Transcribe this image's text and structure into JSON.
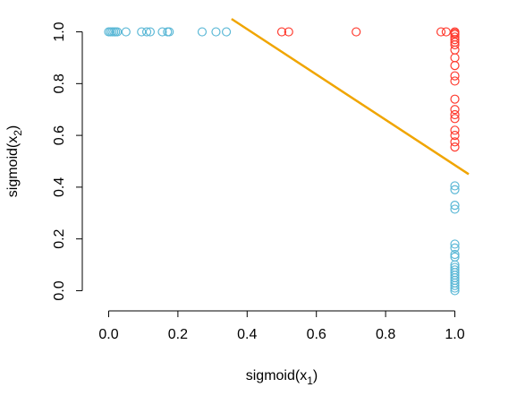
{
  "chart_data": {
    "type": "scatter",
    "title": "",
    "xlabel": {
      "base": "sigmoid(x",
      "sub": "1",
      "close": ")"
    },
    "ylabel": {
      "base": "sigmoid(x",
      "sub": "2",
      "close": ")"
    },
    "xlim": [
      -0.04,
      1.04
    ],
    "ylim": [
      -0.04,
      1.04
    ],
    "xticks": [
      0.0,
      0.2,
      0.4,
      0.6,
      0.8,
      1.0
    ],
    "xtick_labels": [
      "0.0",
      "0.2",
      "0.4",
      "0.6",
      "0.8",
      "1.0"
    ],
    "yticks": [
      0.0,
      0.2,
      0.4,
      0.6,
      0.8,
      1.0
    ],
    "ytick_labels": [
      "0.0",
      "0.2",
      "0.4",
      "0.6",
      "0.8",
      "1.0"
    ],
    "grid": false,
    "series": [
      {
        "color": "#5bb8d6",
        "points": [
          [
            0.0,
            1.0
          ],
          [
            0.005,
            1.0
          ],
          [
            0.01,
            1.0
          ],
          [
            0.015,
            1.0
          ],
          [
            0.02,
            1.0
          ],
          [
            0.025,
            1.0
          ],
          [
            0.05,
            1.0
          ],
          [
            0.095,
            1.0
          ],
          [
            0.11,
            1.0
          ],
          [
            0.12,
            1.0
          ],
          [
            0.155,
            1.0
          ],
          [
            0.17,
            1.0
          ],
          [
            0.175,
            1.0
          ],
          [
            0.27,
            1.0
          ],
          [
            0.31,
            1.0
          ],
          [
            0.34,
            1.0
          ],
          [
            1.0,
            0.405
          ],
          [
            1.0,
            0.39
          ],
          [
            1.0,
            0.33
          ],
          [
            1.0,
            0.315
          ],
          [
            1.0,
            0.18
          ],
          [
            1.0,
            0.165
          ],
          [
            1.0,
            0.14
          ],
          [
            1.0,
            0.13
          ],
          [
            1.0,
            0.1
          ],
          [
            1.0,
            0.09
          ],
          [
            1.0,
            0.08
          ],
          [
            1.0,
            0.07
          ],
          [
            1.0,
            0.06
          ],
          [
            1.0,
            0.05
          ],
          [
            1.0,
            0.04
          ],
          [
            1.0,
            0.03
          ],
          [
            1.0,
            0.02
          ],
          [
            1.0,
            0.01
          ],
          [
            1.0,
            0.0
          ]
        ]
      },
      {
        "color": "#ff3b2f",
        "points": [
          [
            0.5,
            1.0
          ],
          [
            0.52,
            1.0
          ],
          [
            0.715,
            1.0
          ],
          [
            0.96,
            1.0
          ],
          [
            0.975,
            1.0
          ],
          [
            1.0,
            1.0
          ],
          [
            1.0,
            0.995
          ],
          [
            1.0,
            0.99
          ],
          [
            1.0,
            0.98
          ],
          [
            1.0,
            0.97
          ],
          [
            1.0,
            0.96
          ],
          [
            1.0,
            0.95
          ],
          [
            1.0,
            0.93
          ],
          [
            1.0,
            0.9
          ],
          [
            1.0,
            0.87
          ],
          [
            1.0,
            0.83
          ],
          [
            1.0,
            0.81
          ],
          [
            1.0,
            0.74
          ],
          [
            1.0,
            0.7
          ],
          [
            1.0,
            0.68
          ],
          [
            1.0,
            0.665
          ],
          [
            1.0,
            0.62
          ],
          [
            1.0,
            0.6
          ],
          [
            1.0,
            0.575
          ],
          [
            1.0,
            0.555
          ]
        ]
      }
    ],
    "line": {
      "color": "#f0a500",
      "points": [
        [
          0.355,
          1.05
        ],
        [
          1.04,
          0.45
        ]
      ]
    }
  }
}
